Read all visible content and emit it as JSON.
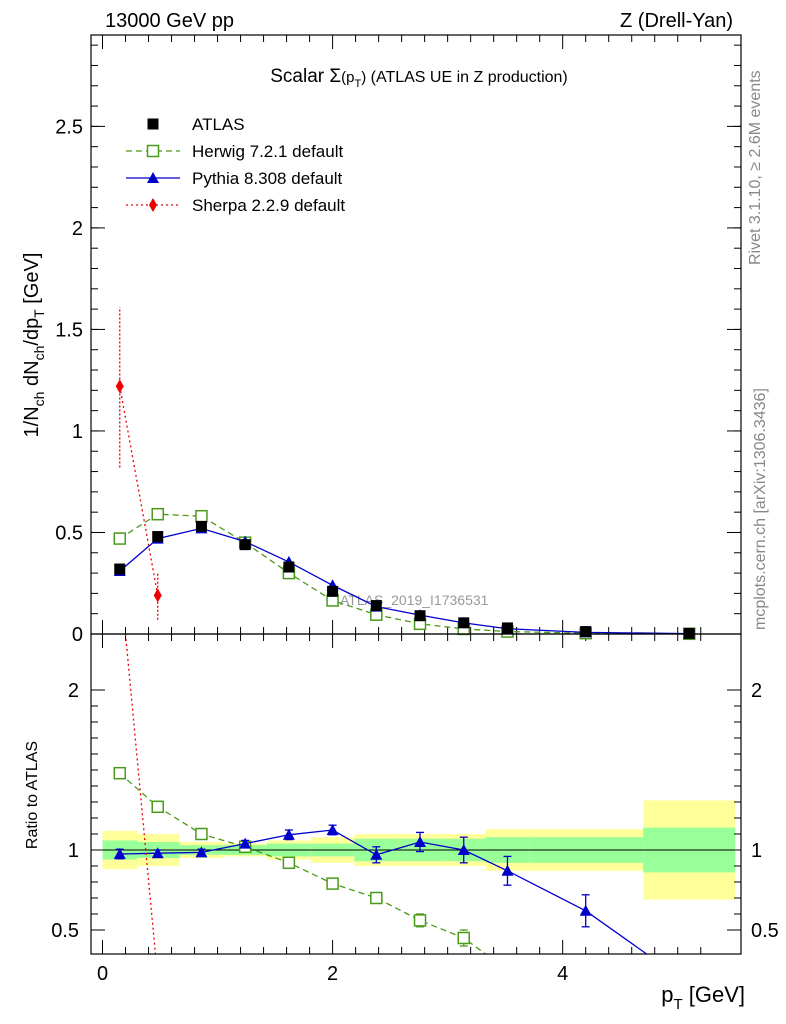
{
  "chart_data": [
    {
      "type": "scatter",
      "panel": "main",
      "header_left": "13000 GeV pp",
      "header_right": "Z (Drell-Yan)",
      "title": "Scalar Σ(p_T) (ATLAS UE in Z production)",
      "title_main": "Scalar ",
      "title_sigma": "Σ",
      "title_paren_open": "(p",
      "title_sub": "T",
      "title_paren_close": ")",
      "title_rest": " (ATLAS UE in Z production)",
      "ylabel": "1/N_ch dN_ch/dp_T [GeV]",
      "ylabel_pre": "1/N",
      "ylabel_sub1": "ch",
      "ylabel_mid": " dN",
      "ylabel_sub2": "ch",
      "ylabel_mid2": "/dp",
      "ylabel_sub3": "T",
      "ylabel_post": " [GeV]",
      "watermark": "ATLAS_2019_I1736531",
      "ylim": [
        0,
        2.95
      ],
      "yticks": [
        0,
        0.5,
        1,
        1.5,
        2,
        2.5
      ],
      "ytick_labels": [
        "0",
        "0.5",
        "1",
        "1.5",
        "2",
        "2.5"
      ],
      "legend_position": "top-left",
      "series": [
        {
          "name": "ATLAS",
          "label": "ATLAS",
          "color": "#000000",
          "marker": "square-filled",
          "x": [
            0.15,
            0.48,
            0.86,
            1.24,
            1.62,
            2.0,
            2.38,
            2.76,
            3.14,
            3.52,
            4.2,
            5.1
          ],
          "y": [
            0.32,
            0.48,
            0.53,
            0.44,
            0.33,
            0.21,
            0.14,
            0.09,
            0.055,
            0.03,
            0.012,
            0.003
          ]
        },
        {
          "name": "Herwig 7.2.1 default",
          "label": "Herwig 7.2.1 default",
          "color": "#4a9a1a",
          "marker": "square-open",
          "line": "dashed",
          "x": [
            0.15,
            0.48,
            0.86,
            1.24,
            1.62,
            2.0,
            2.38,
            2.76,
            3.14,
            3.52,
            4.2,
            5.1
          ],
          "y": [
            0.47,
            0.59,
            0.58,
            0.45,
            0.3,
            0.165,
            0.095,
            0.05,
            0.025,
            0.012,
            0.004,
            0.001
          ]
        },
        {
          "name": "Pythia 8.308 default",
          "label": "Pythia 8.308 default",
          "color": "#0000cc",
          "marker": "triangle-filled",
          "line": "solid",
          "x": [
            0.15,
            0.48,
            0.86,
            1.24,
            1.62,
            2.0,
            2.38,
            2.76,
            3.14,
            3.52,
            4.2,
            5.1
          ],
          "y": [
            0.31,
            0.47,
            0.52,
            0.455,
            0.355,
            0.24,
            0.135,
            0.093,
            0.055,
            0.026,
            0.008,
            0.002
          ]
        },
        {
          "name": "Sherpa 2.2.9 default",
          "label": "Sherpa 2.2.9 default",
          "color": "#ee0000",
          "marker": "diamond-filled",
          "line": "dotted",
          "x": [
            0.15,
            0.48
          ],
          "y": [
            1.22,
            0.19
          ],
          "err": [
            [
              0.82,
              1.61
            ],
            [
              0.07,
              0.3
            ]
          ]
        }
      ]
    },
    {
      "type": "scatter",
      "panel": "ratio",
      "xlabel": "p_T [GeV]",
      "xlabel_pre": "p",
      "xlabel_sub": "T",
      "xlabel_post": " [GeV]",
      "ylabel": "Ratio to ATLAS",
      "xlim": [
        -0.1,
        5.55
      ],
      "xticks": [
        0,
        2,
        4
      ],
      "xtick_labels": [
        "0",
        "2",
        "4"
      ],
      "ylim": [
        0.35,
        2.35
      ],
      "yticks": [
        0.5,
        1,
        2
      ],
      "ytick_labels": [
        "0.5",
        "1",
        "2"
      ],
      "bins": [
        0,
        0.3,
        0.67,
        1.05,
        1.43,
        1.81,
        2.19,
        2.57,
        2.95,
        3.33,
        3.71,
        4.7,
        5.5
      ],
      "band_inner": [
        [
          0.94,
          1.06
        ],
        [
          0.95,
          1.05
        ],
        [
          0.97,
          1.03
        ],
        [
          0.97,
          1.03
        ],
        [
          0.96,
          1.04
        ],
        [
          0.96,
          1.04
        ],
        [
          0.93,
          1.07
        ],
        [
          0.93,
          1.07
        ],
        [
          0.93,
          1.07
        ],
        [
          0.92,
          1.08
        ],
        [
          0.92,
          1.08
        ],
        [
          0.86,
          1.14
        ]
      ],
      "band_outer": [
        [
          0.88,
          1.12
        ],
        [
          0.9,
          1.1
        ],
        [
          0.95,
          1.05
        ],
        [
          0.96,
          1.04
        ],
        [
          0.94,
          1.06
        ],
        [
          0.92,
          1.08
        ],
        [
          0.9,
          1.1
        ],
        [
          0.9,
          1.1
        ],
        [
          0.9,
          1.1
        ],
        [
          0.87,
          1.13
        ],
        [
          0.87,
          1.13
        ],
        [
          0.69,
          1.31
        ]
      ],
      "series": [
        {
          "name": "Herwig 7.2.1 default",
          "color": "#4a9a1a",
          "x": [
            0.15,
            0.48,
            0.86,
            1.24,
            1.62,
            2.0,
            2.38,
            2.76,
            3.14
          ],
          "y": [
            1.48,
            1.27,
            1.1,
            1.02,
            0.92,
            0.79,
            0.7,
            0.56,
            0.45
          ],
          "err": [
            0.02,
            0.02,
            0.02,
            0.02,
            0.02,
            0.02,
            0.03,
            0.04,
            0.05
          ],
          "line_to": [
            3.33,
            0.35
          ]
        },
        {
          "name": "Pythia 8.308 default",
          "color": "#0000cc",
          "x": [
            0.15,
            0.48,
            0.86,
            1.24,
            1.62,
            2.0,
            2.38,
            2.76,
            3.14,
            3.52,
            4.2
          ],
          "y": [
            0.975,
            0.98,
            0.985,
            1.04,
            1.095,
            1.125,
            0.97,
            1.05,
            1.0,
            0.87,
            0.62
          ],
          "err": [
            0.03,
            0.02,
            0.02,
            0.02,
            0.03,
            0.03,
            0.05,
            0.06,
            0.08,
            0.09,
            0.1
          ],
          "line_to": [
            4.73,
            0.35
          ]
        },
        {
          "name": "Sherpa 2.2.9 default",
          "color": "#ee0000",
          "x": [
            0.2,
            0.46
          ],
          "y": [
            2.35,
            0.35
          ]
        }
      ]
    }
  ],
  "side": {
    "rivet": "Rivet 3.1.10, ≥ 2.6M events",
    "mcplots": "mcplots.cern.ch [arXiv:1306.3436]"
  }
}
